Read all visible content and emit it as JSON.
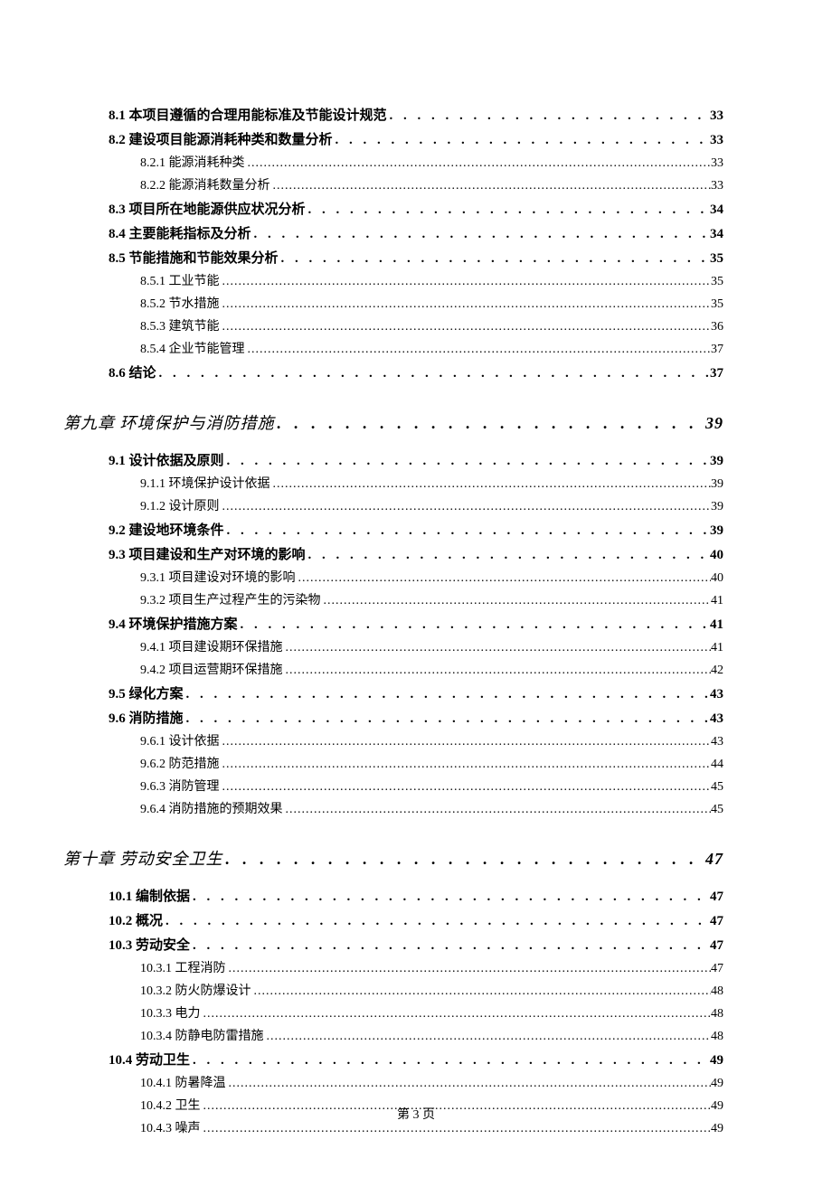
{
  "footer": "第 3 页",
  "dots_chapter": ". . . . . . . . . . . . . . . . . . . . . . . . . . . . . . . . . . . . . . . . . . . . . . . . . . . . . . . . . . . . . . . . . . . . . . . . . . . . . . . . . . . . . . . . . . . . . . . . . . . . . . . . . . . . . . . . . . . . . . . . . . . . . . . . .",
  "dots_section": ". . . . . . . . . . . . . . . . . . . . . . . . . . . . . . . . . . . . . . . . . . . . . . . . . . . . . . . . . . . . . . . . . . . . . . . . . . . . . . . . . . . . . . . . . . . . . . . . . . . . . . . . . . . . . . . . . . . . . . . . . . . . . . . . .",
  "dots_subsection": ".................................................................................................................................................................",
  "entries": [
    {
      "level": 2,
      "title": "8.1 本项目遵循的合理用能标准及节能设计规范 ",
      "page": " 33"
    },
    {
      "level": 2,
      "title": "8.2 建设项目能源消耗种类和数量分析 ",
      "page": " 33"
    },
    {
      "level": 3,
      "title": "8.2.1 能源消耗种类",
      "page": "33"
    },
    {
      "level": 3,
      "title": "8.2.2 能源消耗数量分析",
      "page": "33"
    },
    {
      "level": 2,
      "title": "8.3 项目所在地能源供应状况分析 ",
      "page": " 34"
    },
    {
      "level": 2,
      "title": "8.4 主要能耗指标及分析 ",
      "page": " 34"
    },
    {
      "level": 2,
      "title": "8.5 节能措施和节能效果分析 ",
      "page": " 35"
    },
    {
      "level": 3,
      "title": "8.5.1 工业节能",
      "page": "35"
    },
    {
      "level": 3,
      "title": "8.5.2 节水措施",
      "page": "35"
    },
    {
      "level": 3,
      "title": "8.5.3 建筑节能",
      "page": "36"
    },
    {
      "level": 3,
      "title": "8.5.4 企业节能管理",
      "page": "37"
    },
    {
      "level": 2,
      "title": "8.6 结论 ",
      "page": " 37"
    },
    {
      "level": 1,
      "title": "第九章  环境保护与消防措施 ",
      "page": " 39"
    },
    {
      "level": 2,
      "title": "9.1 设计依据及原则 ",
      "page": " 39"
    },
    {
      "level": 3,
      "title": "9.1.1 环境保护设计依据",
      "page": "39"
    },
    {
      "level": 3,
      "title": "9.1.2 设计原则",
      "page": "39"
    },
    {
      "level": 2,
      "title": "9.2 建设地环境条件 ",
      "page": " 39"
    },
    {
      "level": 2,
      "title": "9.3  项目建设和生产对环境的影响",
      "page": " 40"
    },
    {
      "level": 3,
      "title": "9.3.1  项目建设对环境的影响",
      "page": "40"
    },
    {
      "level": 3,
      "title": "9.3.2  项目生产过程产生的污染物",
      "page": "41"
    },
    {
      "level": 2,
      "title": "9.4  环境保护措施方案",
      "page": " 41"
    },
    {
      "level": 3,
      "title": "9.4.1  项目建设期环保措施",
      "page": "41"
    },
    {
      "level": 3,
      "title": "9.4.2  项目运营期环保措施",
      "page": "42"
    },
    {
      "level": 2,
      "title": "9.5 绿化方案 ",
      "page": " 43"
    },
    {
      "level": 2,
      "title": "9.6 消防措施 ",
      "page": " 43"
    },
    {
      "level": 3,
      "title": "9.6.1 设计依据",
      "page": "43"
    },
    {
      "level": 3,
      "title": "9.6.2 防范措施",
      "page": "44"
    },
    {
      "level": 3,
      "title": "9.6.3 消防管理",
      "page": "45"
    },
    {
      "level": 3,
      "title": "9.6.4 消防措施的预期效果",
      "page": "45"
    },
    {
      "level": 1,
      "title": "第十章  劳动安全卫生",
      "page": " 47"
    },
    {
      "level": 2,
      "title": "10.1  编制依据",
      "page": " 47"
    },
    {
      "level": 2,
      "title": "10.2 概况 ",
      "page": " 47"
    },
    {
      "level": 2,
      "title": "10.3  劳动安全",
      "page": " 47"
    },
    {
      "level": 3,
      "title": "10.3.1 工程消防",
      "page": "47"
    },
    {
      "level": 3,
      "title": "10.3.2 防火防爆设计",
      "page": "48"
    },
    {
      "level": 3,
      "title": "10.3.3 电力",
      "page": "48"
    },
    {
      "level": 3,
      "title": "10.3.4 防静电防雷措施",
      "page": "48"
    },
    {
      "level": 2,
      "title": "10.4 劳动卫生 ",
      "page": " 49"
    },
    {
      "level": 3,
      "title": "10.4.1 防暑降温",
      "page": "49"
    },
    {
      "level": 3,
      "title": "10.4.2 卫生",
      "page": "49"
    },
    {
      "level": 3,
      "title": "10.4.3 噪声",
      "page": "49"
    }
  ]
}
